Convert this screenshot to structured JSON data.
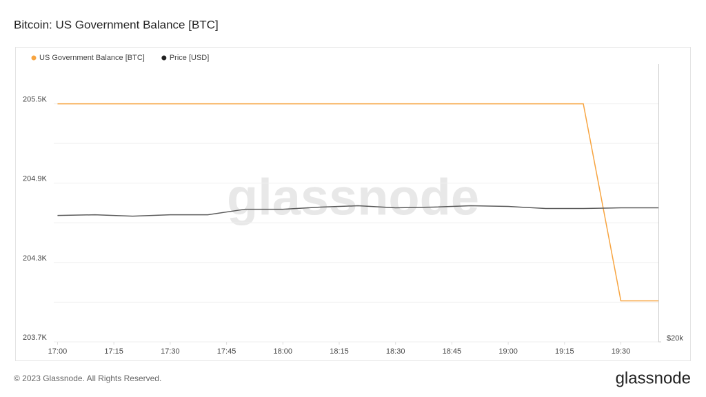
{
  "chart_data": {
    "type": "line",
    "title": "Bitcoin: US Government Balance [BTC]",
    "watermark": "glassnode",
    "footer": "© 2023 Glassnode. All Rights Reserved.",
    "brand": "glassnode",
    "x": [
      "17:00",
      "17:10",
      "17:20",
      "17:30",
      "17:40",
      "17:50",
      "18:00",
      "18:10",
      "18:20",
      "18:30",
      "18:40",
      "18:50",
      "19:00",
      "19:10",
      "19:20",
      "19:30",
      "19:40"
    ],
    "xlim": [
      "16:59",
      "19:40"
    ],
    "xticks": [
      "17:00",
      "17:15",
      "17:30",
      "17:45",
      "18:00",
      "18:15",
      "18:30",
      "18:45",
      "19:00",
      "19:15",
      "19:30"
    ],
    "series": [
      {
        "name": "US Government Balance [BTC]",
        "color": "#f7a440",
        "axis": "y",
        "values": [
          205500,
          205500,
          205500,
          205500,
          205500,
          205500,
          205500,
          205500,
          205500,
          205500,
          205500,
          205500,
          205500,
          205500,
          205500,
          204010,
          204010
        ]
      },
      {
        "name": "Price [USD]",
        "color": "#5a5a5a",
        "legend_color": "#222222",
        "axis": "y2",
        "values": [
          21820,
          21830,
          21810,
          21830,
          21830,
          21910,
          21910,
          21940,
          21960,
          21930,
          21940,
          21960,
          21950,
          21920,
          21920,
          21930,
          21930
        ]
      }
    ],
    "ylim": [
      203700,
      205800
    ],
    "yticks": [
      {
        "value": 203700,
        "label": "203.7K"
      },
      {
        "value": 204300,
        "label": "204.3K"
      },
      {
        "value": 204900,
        "label": "204.9K"
      },
      {
        "value": 205500,
        "label": "205.5K"
      }
    ],
    "minor_yticks": [
      204000,
      204600,
      205200
    ],
    "y2lim": [
      20000,
      24000
    ],
    "y2ticks": [
      {
        "value": 20000,
        "label": "$20k"
      }
    ],
    "grid": true,
    "legend": "top-left"
  }
}
